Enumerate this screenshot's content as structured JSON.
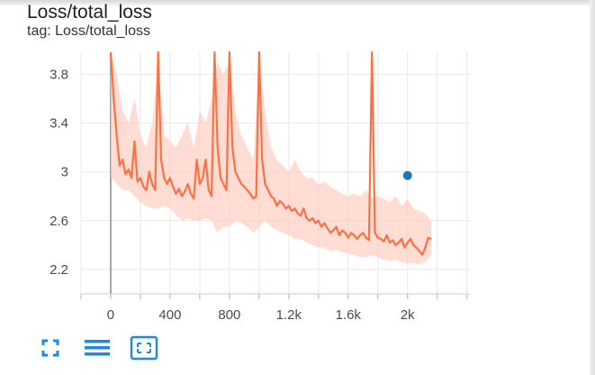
{
  "card": {
    "title": "Loss/total_loss",
    "tag": "tag: Loss/total_loss"
  },
  "toolbar": {
    "fullscreen_icon": "fullscreen-icon",
    "data_table_icon": "list-icon",
    "fit_domain_icon": "fit-to-domain-icon"
  },
  "colors": {
    "smoothed": "#ff7043",
    "raw": "#ffcbbd",
    "tooltip_dot": "#1f77b4",
    "grid": "#e8e8e8",
    "zero_line": "#8a8a8a"
  },
  "chart_data": {
    "type": "line",
    "title": "Loss/total_loss",
    "xlabel": "",
    "ylabel": "",
    "xlim": [
      -200,
      2420
    ],
    "ylim": [
      2.0,
      3.98
    ],
    "x_ticks": [
      0,
      400,
      800,
      1200,
      1600,
      2000
    ],
    "x_tick_labels": [
      "0",
      "400",
      "800",
      "1.2k",
      "1.6k",
      "2k"
    ],
    "y_ticks": [
      2.2,
      2.6,
      3.0,
      3.4,
      3.8
    ],
    "y_tick_labels": [
      "2.2",
      "2.6",
      "3",
      "3.4",
      "3.8"
    ],
    "grid": true,
    "series": [
      {
        "style": "smoothed",
        "x": [
          0,
          20,
          40,
          60,
          80,
          100,
          120,
          140,
          160,
          180,
          200,
          220,
          240,
          260,
          280,
          300,
          320,
          340,
          360,
          380,
          400,
          420,
          440,
          460,
          480,
          500,
          520,
          540,
          560,
          580,
          600,
          620,
          640,
          660,
          680,
          700,
          720,
          740,
          760,
          780,
          800,
          820,
          840,
          860,
          880,
          900,
          920,
          940,
          960,
          980,
          1000,
          1020,
          1040,
          1060,
          1080,
          1100,
          1120,
          1140,
          1160,
          1180,
          1200,
          1220,
          1240,
          1260,
          1280,
          1300,
          1320,
          1340,
          1360,
          1380,
          1400,
          1420,
          1440,
          1460,
          1480,
          1500,
          1520,
          1540,
          1560,
          1580,
          1600,
          1620,
          1640,
          1660,
          1680,
          1700,
          1720,
          1740,
          1760,
          1780,
          1800,
          1820,
          1840,
          1860,
          1880,
          1900,
          1920,
          1940,
          1960,
          1980,
          2000,
          2020,
          2040,
          2060,
          2080,
          2100,
          2120,
          2140,
          2160
        ],
        "y": [
          4.0,
          3.6,
          3.3,
          3.05,
          3.1,
          2.98,
          3.02,
          2.95,
          3.25,
          2.92,
          2.95,
          2.88,
          2.85,
          3.0,
          2.9,
          2.85,
          4.0,
          3.1,
          2.95,
          2.9,
          2.95,
          2.88,
          2.82,
          2.86,
          2.8,
          2.84,
          2.9,
          2.82,
          2.78,
          3.1,
          2.9,
          2.95,
          3.1,
          2.85,
          2.8,
          4.0,
          3.2,
          2.95,
          2.9,
          2.85,
          4.0,
          3.2,
          3.0,
          2.95,
          2.9,
          2.88,
          2.85,
          2.82,
          2.78,
          2.8,
          4.0,
          3.1,
          2.9,
          2.85,
          2.8,
          2.78,
          2.72,
          2.76,
          2.74,
          2.7,
          2.72,
          2.68,
          2.7,
          2.66,
          2.64,
          2.7,
          2.62,
          2.6,
          2.62,
          2.58,
          2.6,
          2.55,
          2.58,
          2.54,
          2.5,
          2.52,
          2.55,
          2.48,
          2.52,
          2.5,
          2.46,
          2.5,
          2.48,
          2.45,
          2.48,
          2.5,
          2.46,
          2.44,
          4.0,
          2.5,
          2.46,
          2.45,
          2.43,
          2.48,
          2.42,
          2.44,
          2.4,
          2.42,
          2.45,
          2.38,
          2.42,
          2.45,
          2.4,
          2.38,
          2.35,
          2.32,
          2.38,
          2.46,
          2.45
        ]
      },
      {
        "style": "raw-envelope",
        "x": [
          0,
          40,
          80,
          120,
          160,
          200,
          240,
          280,
          320,
          360,
          400,
          440,
          480,
          520,
          560,
          600,
          640,
          680,
          720,
          760,
          800,
          840,
          880,
          920,
          960,
          1000,
          1040,
          1080,
          1120,
          1160,
          1200,
          1240,
          1280,
          1320,
          1360,
          1400,
          1440,
          1480,
          1520,
          1560,
          1600,
          1640,
          1680,
          1720,
          1760,
          1800,
          1840,
          1880,
          1920,
          1960,
          2000,
          2040,
          2080,
          2120,
          2160
        ],
        "y_low": [
          2.95,
          2.9,
          2.85,
          2.85,
          2.8,
          2.75,
          2.72,
          2.7,
          2.7,
          2.72,
          2.7,
          2.65,
          2.6,
          2.62,
          2.6,
          2.6,
          2.62,
          2.6,
          2.5,
          2.55,
          2.55,
          2.6,
          2.58,
          2.55,
          2.5,
          2.55,
          2.6,
          2.55,
          2.52,
          2.5,
          2.48,
          2.45,
          2.45,
          2.42,
          2.4,
          2.38,
          2.38,
          2.35,
          2.36,
          2.34,
          2.33,
          2.32,
          2.3,
          2.3,
          2.32,
          2.3,
          2.28,
          2.27,
          2.28,
          2.26,
          2.25,
          2.25,
          2.24,
          2.26,
          2.32
        ],
        "y_high": [
          4.0,
          3.8,
          3.5,
          3.4,
          3.6,
          3.3,
          3.2,
          3.4,
          3.9,
          3.3,
          3.25,
          3.2,
          3.3,
          3.4,
          3.2,
          3.5,
          3.4,
          3.6,
          3.9,
          3.8,
          3.9,
          3.5,
          3.3,
          3.2,
          3.1,
          3.9,
          3.5,
          3.2,
          3.1,
          3.05,
          3.0,
          3.1,
          3.0,
          2.95,
          2.95,
          2.9,
          2.92,
          2.88,
          2.85,
          2.82,
          2.8,
          2.82,
          2.8,
          2.85,
          2.78,
          2.8,
          2.78,
          2.75,
          2.8,
          2.72,
          2.78,
          2.7,
          2.68,
          2.66,
          2.6
        ]
      }
    ],
    "tooltip_point": {
      "x": 2000,
      "y": 2.97
    }
  }
}
